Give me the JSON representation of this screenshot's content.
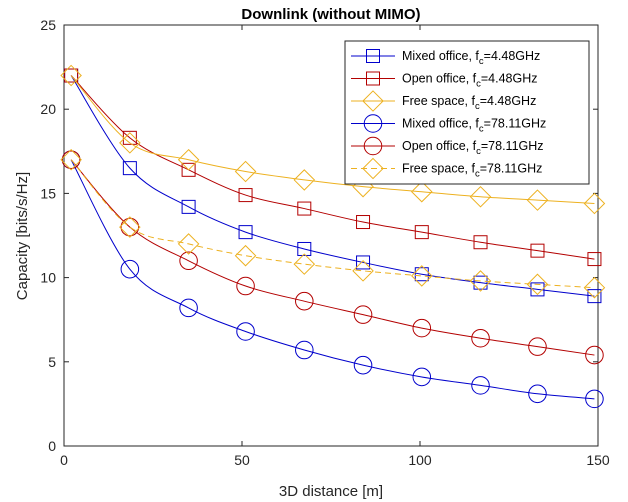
{
  "chart_data": {
    "type": "line",
    "title": "Downlink (without MIMO)",
    "xlabel": "3D distance [m]",
    "ylabel": "Capacity [bits/s/Hz]",
    "xlim": [
      0,
      150
    ],
    "ylim": [
      0,
      25
    ],
    "xticks": [
      0,
      50,
      100,
      150
    ],
    "yticks": [
      0,
      5,
      10,
      15,
      20,
      25
    ],
    "grid": false,
    "legend_position": "top-right",
    "x": [
      2,
      18.5,
      35,
      51,
      67.5,
      84,
      100.5,
      117,
      133,
      149
    ],
    "series": [
      {
        "name_main": "Mixed office, f",
        "name_sub": "c",
        "name_tail": "=4.48GHz",
        "color": "#0000CC",
        "marker": "square",
        "dash": "solid",
        "values": [
          22.0,
          16.5,
          14.2,
          12.7,
          11.7,
          10.9,
          10.2,
          9.7,
          9.3,
          8.9
        ]
      },
      {
        "name_main": "Open office, f",
        "name_sub": "c",
        "name_tail": "=4.48GHz",
        "color": "#B30000",
        "marker": "square",
        "dash": "solid",
        "values": [
          22.0,
          18.3,
          16.4,
          14.9,
          14.1,
          13.3,
          12.7,
          12.1,
          11.6,
          11.1
        ]
      },
      {
        "name_main": "Free space, f",
        "name_sub": "c",
        "name_tail": "=4.48GHz",
        "color": "#EDB120",
        "marker": "diamond",
        "dash": "solid",
        "values": [
          22.0,
          18.0,
          17.0,
          16.3,
          15.8,
          15.4,
          15.1,
          14.8,
          14.6,
          14.4
        ]
      },
      {
        "name_main": "Mixed office, f",
        "name_sub": "c",
        "name_tail": "=78.11GHz",
        "color": "#0000CC",
        "marker": "circle",
        "dash": "solid",
        "values": [
          17.0,
          10.5,
          8.2,
          6.8,
          5.7,
          4.8,
          4.1,
          3.6,
          3.1,
          2.8
        ]
      },
      {
        "name_main": "Open office, f",
        "name_sub": "c",
        "name_tail": "=78.11GHz",
        "color": "#B30000",
        "marker": "circle",
        "dash": "solid",
        "values": [
          17.0,
          13.0,
          11.0,
          9.5,
          8.6,
          7.8,
          7.0,
          6.4,
          5.9,
          5.4
        ]
      },
      {
        "name_main": "Free space, f",
        "name_sub": "c",
        "name_tail": "=78.11GHz",
        "color": "#EDB120",
        "marker": "diamond",
        "dash": "dashed",
        "values": [
          17.0,
          13.0,
          12.0,
          11.3,
          10.8,
          10.4,
          10.1,
          9.8,
          9.6,
          9.4
        ]
      }
    ]
  }
}
